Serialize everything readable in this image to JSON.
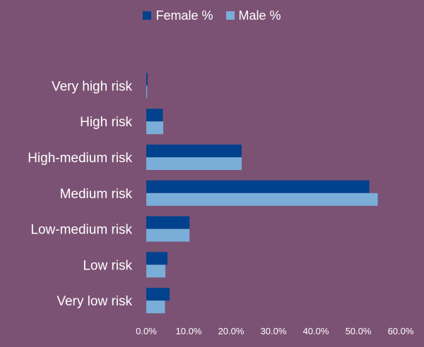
{
  "chart_data": {
    "type": "bar",
    "orientation": "horizontal",
    "categories": [
      "Very high risk",
      "High risk",
      "High-medium risk",
      "Medium risk",
      "Low-medium risk",
      "Low risk",
      "Very low risk"
    ],
    "series": [
      {
        "name": "Female %",
        "color": "#00428e",
        "values": [
          0.3,
          3.9,
          22.5,
          52.6,
          10.2,
          5.0,
          5.5
        ]
      },
      {
        "name": "Male %",
        "color": "#7aaed8",
        "values": [
          0.2,
          4.0,
          22.5,
          54.6,
          10.2,
          4.5,
          4.4
        ]
      }
    ],
    "xlim": [
      0,
      60
    ],
    "x_ticks": [
      "0.0%",
      "10.0%",
      "20.0%",
      "30.0%",
      "40.0%",
      "50.0%",
      "60.0%"
    ],
    "legend_position": "top-center",
    "grid": false,
    "background": "#7b5274"
  }
}
